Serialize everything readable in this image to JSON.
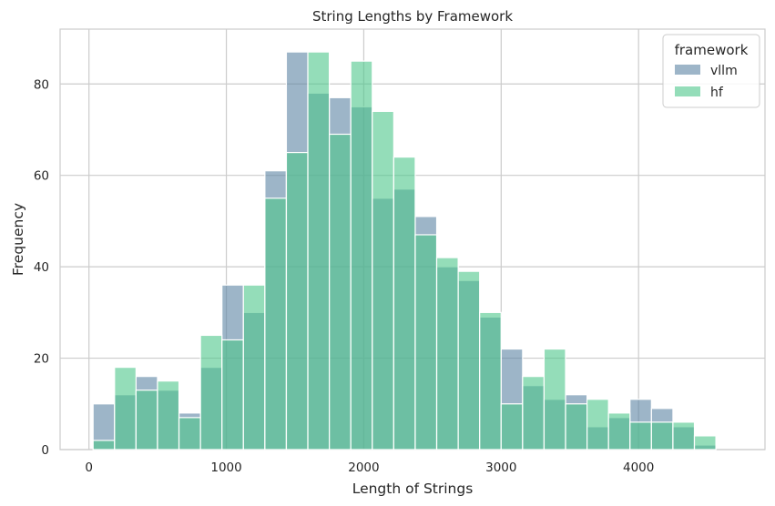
{
  "chart_data": {
    "type": "histogram",
    "title": "String Lengths by Framework",
    "xlabel": "Length of Strings",
    "ylabel": "Frequency",
    "xlim": [
      -210,
      4920
    ],
    "ylim": [
      0,
      92
    ],
    "x_ticks": [
      0,
      1000,
      2000,
      3000,
      4000
    ],
    "y_ticks": [
      0,
      20,
      40,
      60,
      80
    ],
    "grid": true,
    "legend": {
      "title": "framework",
      "placement": "top-right"
    },
    "bin_start": 30,
    "bin_width": 156.3,
    "series": [
      {
        "name": "vllm",
        "color": "#5b84a4",
        "values": [
          10,
          12,
          16,
          13,
          8,
          18,
          36,
          30,
          61,
          87,
          78,
          77,
          75,
          55,
          57,
          51,
          40,
          37,
          29,
          22,
          14,
          11,
          12,
          5,
          7,
          11,
          9,
          5,
          1
        ]
      },
      {
        "name": "hf",
        "color": "#4cc68a",
        "values": [
          2,
          18,
          13,
          15,
          7,
          25,
          24,
          36,
          55,
          65,
          87,
          69,
          85,
          74,
          64,
          47,
          42,
          39,
          30,
          10,
          16,
          22,
          10,
          11,
          8,
          6,
          6,
          6,
          3
        ]
      }
    ]
  }
}
